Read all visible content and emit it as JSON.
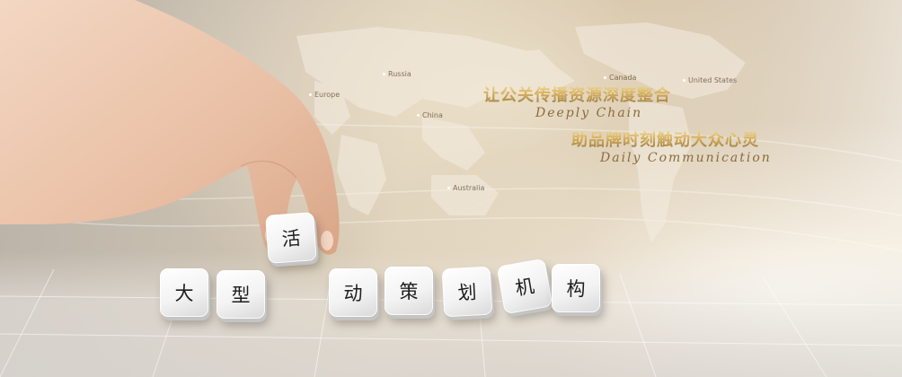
{
  "headline": {
    "line1": "让公关传播资源深度整合",
    "line1_script": "Deeply Chain",
    "line2": "助品牌时刻触动大众心灵",
    "line2_script": "Daily Communication"
  },
  "map_labels": {
    "russia": "Russia",
    "europe": "Europe",
    "china": "China",
    "australia": "Australia",
    "canada": "Canada",
    "united_states": "United States"
  },
  "cubes": [
    "大",
    "型",
    "活",
    "动",
    "策",
    "划",
    "机",
    "构"
  ],
  "colors": {
    "headline_gold": "#c99a36",
    "script_brown": "#8a6c3c",
    "cube_white": "#f3f3f3"
  }
}
